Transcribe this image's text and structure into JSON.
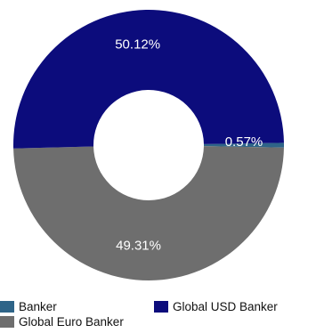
{
  "chart_data": {
    "type": "pie",
    "variant": "donut",
    "series": [
      {
        "name": "Banker",
        "value": 0.57,
        "label": "0.57%",
        "color": "#2e6488"
      },
      {
        "name": "Global Euro Banker",
        "value": 49.31,
        "label": "49.31%",
        "color": "#6e6e6e"
      },
      {
        "name": "Global USD Banker",
        "value": 50.12,
        "label": "50.12%",
        "color": "#0c0c7c"
      }
    ],
    "legend": {
      "position": "bottom",
      "entries": [
        "Banker",
        "Global Euro Banker",
        "Global USD Banker"
      ]
    }
  }
}
